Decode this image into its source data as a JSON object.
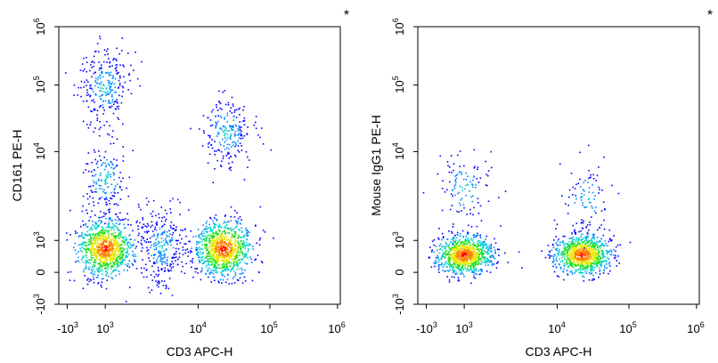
{
  "chart_data": [
    {
      "type": "scatter",
      "subtype": "flow-cytometry-density-dot-plot",
      "corner_mark": "*",
      "xlabel": "CD3 APC-H",
      "ylabel": "CD161 PE-H",
      "x_scale": "biexponential",
      "y_scale": "biexponential",
      "xlim": [
        -1000,
        1000000
      ],
      "ylim": [
        -1000,
        1000000
      ],
      "x_ticks": [
        {
          "value": -1000,
          "base": "-10",
          "exp": "3"
        },
        {
          "value": 1000,
          "base": "10",
          "exp": "3"
        },
        {
          "value": 10000,
          "base": "10",
          "exp": "4"
        },
        {
          "value": 100000,
          "base": "10",
          "exp": "5"
        },
        {
          "value": 1000000,
          "base": "10",
          "exp": "6"
        }
      ],
      "y_ticks": [
        {
          "value": -1000,
          "base": "-10",
          "exp": "3"
        },
        {
          "value": 0,
          "base": "0",
          "exp": ""
        },
        {
          "value": 1000,
          "base": "10",
          "exp": "3"
        },
        {
          "value": 10000,
          "base": "10",
          "exp": "4"
        },
        {
          "value": 100000,
          "base": "10",
          "exp": "5"
        },
        {
          "value": 1000000,
          "base": "10",
          "exp": "6"
        }
      ],
      "populations": [
        {
          "name": "CD3- CD161-",
          "x": 800,
          "y": 200,
          "relative_density": 1.0
        },
        {
          "name": "CD3+ CD161-",
          "x": 22000,
          "y": 200,
          "relative_density": 1.0
        },
        {
          "name": "CD3- CD161 high",
          "x": 700,
          "y": 95000,
          "relative_density": 0.25
        },
        {
          "name": "CD3+ CD161+",
          "x": 25000,
          "y": 20000,
          "relative_density": 0.2
        },
        {
          "name": "CD3- CD161 dim",
          "x": 900,
          "y": 5000,
          "relative_density": 0.15
        },
        {
          "name": "CD3 intermediate bridge",
          "x": 4000,
          "y": 300,
          "relative_density": 0.3
        }
      ]
    },
    {
      "type": "scatter",
      "subtype": "flow-cytometry-density-dot-plot",
      "corner_mark": "*",
      "xlabel": "CD3 APC-H",
      "ylabel": "Mouse IgG1 PE-H",
      "x_scale": "biexponential",
      "y_scale": "biexponential",
      "xlim": [
        -1000,
        1000000
      ],
      "ylim": [
        -1000,
        1000000
      ],
      "x_ticks": [
        {
          "value": -1000,
          "base": "-10",
          "exp": "3"
        },
        {
          "value": 1000,
          "base": "10",
          "exp": "3"
        },
        {
          "value": 10000,
          "base": "10",
          "exp": "4"
        },
        {
          "value": 100000,
          "base": "10",
          "exp": "5"
        },
        {
          "value": 1000000,
          "base": "10",
          "exp": "6"
        }
      ],
      "y_ticks": [
        {
          "value": -1000,
          "base": "-10",
          "exp": "3"
        },
        {
          "value": 0,
          "base": "0",
          "exp": ""
        },
        {
          "value": 1000,
          "base": "10",
          "exp": "3"
        },
        {
          "value": 10000,
          "base": "10",
          "exp": "4"
        },
        {
          "value": 100000,
          "base": "10",
          "exp": "5"
        },
        {
          "value": 1000000,
          "base": "10",
          "exp": "6"
        }
      ],
      "populations": [
        {
          "name": "CD3- isotype",
          "x": 800,
          "y": 50,
          "relative_density": 1.0
        },
        {
          "name": "CD3+ isotype",
          "x": 22000,
          "y": 50,
          "relative_density": 1.0
        },
        {
          "name": "CD3- sparse high",
          "x": 900,
          "y": 4000,
          "relative_density": 0.08
        },
        {
          "name": "CD3+ sparse high",
          "x": 25000,
          "y": 3000,
          "relative_density": 0.06
        }
      ]
    }
  ],
  "colors": {
    "axis": "#000000",
    "density_scale": [
      "#0000ff",
      "#0088ff",
      "#00d0d0",
      "#20e020",
      "#e8e800",
      "#ff8000",
      "#ff0000"
    ]
  }
}
